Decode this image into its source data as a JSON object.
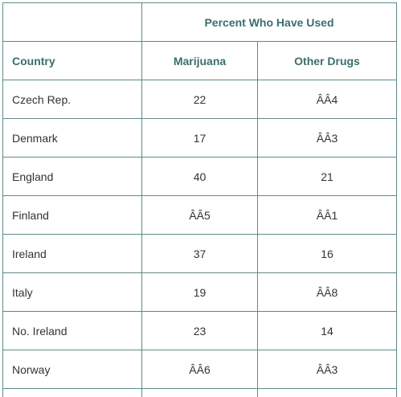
{
  "table": {
    "group_header": "Percent Who Have Used",
    "columns": [
      "Country",
      "Marijuana",
      "Other Drugs"
    ],
    "rows": [
      {
        "country": "Czech Rep.",
        "marijuana": "22",
        "other": "ÂÂ4"
      },
      {
        "country": "Denmark",
        "marijuana": "17",
        "other": "ÂÂ3"
      },
      {
        "country": "England",
        "marijuana": "40",
        "other": "21"
      },
      {
        "country": "Finland",
        "marijuana": "ÂÂ5",
        "other": "ÂÂ1"
      },
      {
        "country": "Ireland",
        "marijuana": "37",
        "other": "16"
      },
      {
        "country": "Italy",
        "marijuana": "19",
        "other": "ÂÂ8"
      },
      {
        "country": "No. Ireland",
        "marijuana": "23",
        "other": "14"
      },
      {
        "country": "Norway",
        "marijuana": "ÂÂ6",
        "other": "ÂÂ3"
      }
    ]
  },
  "colors": {
    "border": "#5d8a88",
    "header_text": "#3b6e6e",
    "cell_text": "#333333"
  }
}
